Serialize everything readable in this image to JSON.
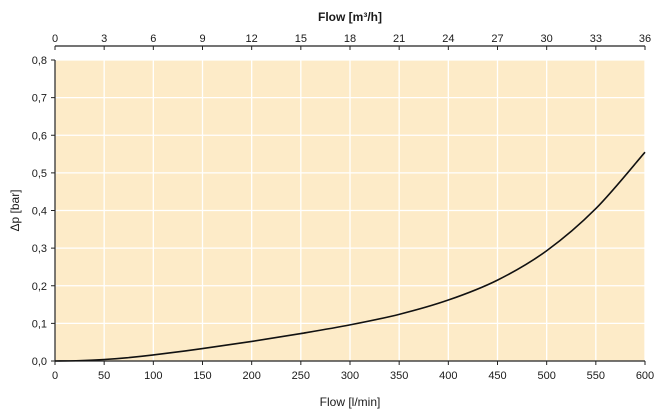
{
  "chart_data": {
    "type": "line",
    "title": "",
    "top_xlabel": "Flow [m³/h]",
    "xlabel": "Flow [l/min]",
    "ylabel": "Δp [bar]",
    "xlim": [
      0,
      600
    ],
    "ylim": [
      0,
      0.8
    ],
    "top_xlim": [
      0,
      36
    ],
    "x_ticks": [
      "0",
      "50",
      "100",
      "150",
      "200",
      "250",
      "300",
      "350",
      "400",
      "450",
      "500",
      "550",
      "600"
    ],
    "top_x_ticks": [
      "0",
      "3",
      "6",
      "9",
      "12",
      "15",
      "18",
      "21",
      "24",
      "27",
      "30",
      "33",
      "36"
    ],
    "y_ticks": [
      "0,0",
      "0,1",
      "0,2",
      "0,3",
      "0,4",
      "0,5",
      "0,6",
      "0,7",
      "0,8"
    ],
    "grid": true,
    "series": [
      {
        "x": [
          0,
          25,
          50,
          75,
          100,
          150,
          200,
          250,
          300,
          350,
          400,
          450,
          500,
          550,
          600
        ],
        "y": [
          0.0,
          0.001,
          0.004,
          0.009,
          0.016,
          0.033,
          0.052,
          0.073,
          0.096,
          0.124,
          0.162,
          0.215,
          0.293,
          0.405,
          0.555
        ]
      }
    ],
    "colors": {
      "plot_background": "#fdebc8",
      "grid": "#ffffff",
      "curve": "#111111",
      "axis": "#222222"
    }
  }
}
